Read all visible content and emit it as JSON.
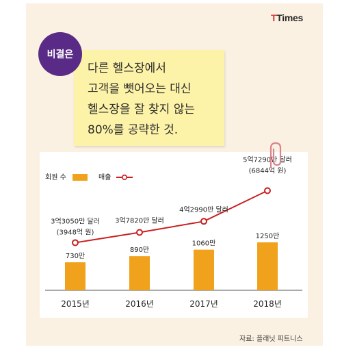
{
  "brand": {
    "logo_text_t": "T",
    "logo_text_rest": "Times"
  },
  "badge": {
    "label": "비결은"
  },
  "note": {
    "lines": [
      "다른 헬스장에서",
      "고객을 뺏어오는 대신",
      "헬스장을 잘 찾지 않는",
      "80%를 공략한 것."
    ]
  },
  "chart_data": {
    "type": "bar",
    "categories": [
      "2015년",
      "2016년",
      "2017년",
      "2018년"
    ],
    "series": [
      {
        "name": "회원 수",
        "kind": "bar",
        "values": [
          730,
          890,
          1060,
          1250
        ],
        "labels": [
          "730만",
          "890만",
          "1060만",
          "1250만"
        ],
        "color": "#f0a21c"
      },
      {
        "name": "매출",
        "kind": "line",
        "values_usd": [
          330500000,
          378200000,
          429900000,
          572900000
        ],
        "labels": [
          [
            "3억3050만 달러",
            "(3948억 원)"
          ],
          [
            "3억7820만 달러"
          ],
          [
            "4억2990만 달러"
          ],
          [
            "5억7290만 달러",
            "(6844억 원)"
          ]
        ],
        "color": "#c8201f"
      }
    ],
    "legend_position": "top-left"
  },
  "source": {
    "text": "자료: 플래닛 피트니스"
  },
  "colors": {
    "frame": "#fbf1e3",
    "badge": "#5a2b86",
    "note": "#fdf3a8",
    "bar": "#f0a21c",
    "line": "#c8201f"
  }
}
